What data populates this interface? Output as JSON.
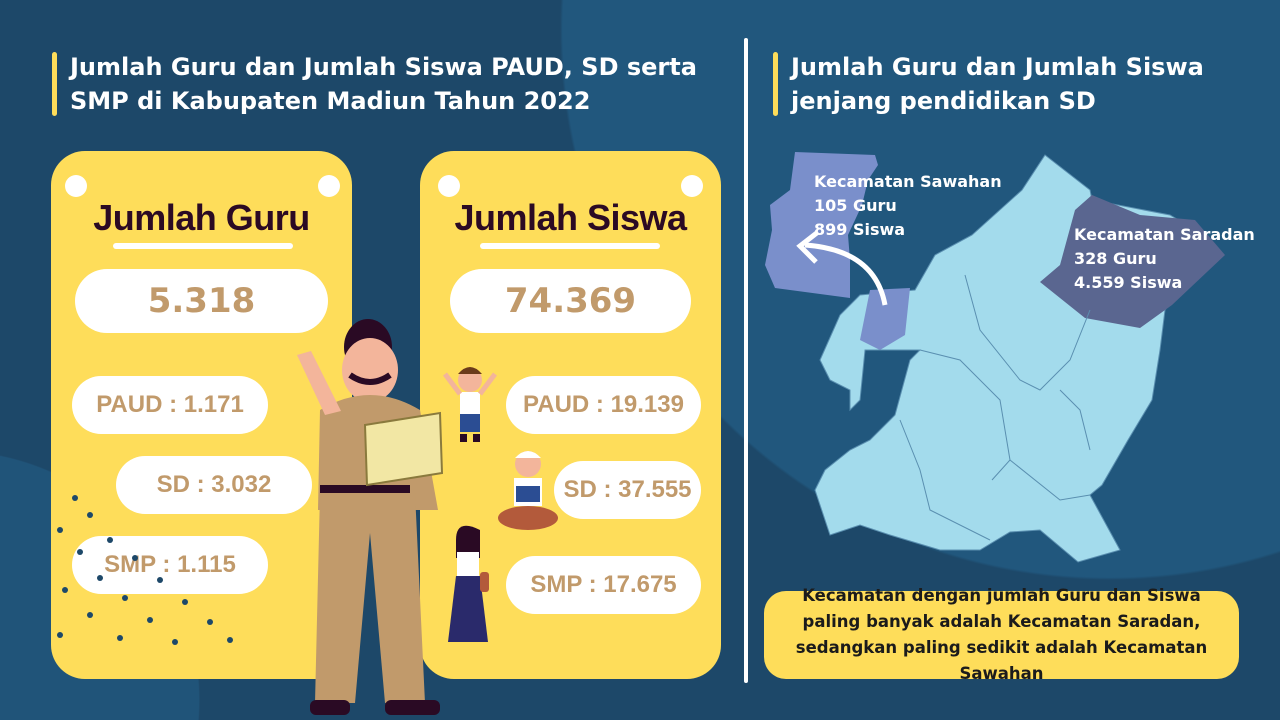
{
  "left_title": {
    "line1": "Jumlah Guru dan Jumlah Siswa PAUD, SD serta",
    "line2": "SMP di Kabupaten Madiun Tahun 2022"
  },
  "right_title": {
    "line1": "Jumlah Guru dan Jumlah Siswa",
    "line2": "jenjang pendidikan SD"
  },
  "guru_card": {
    "heading": "Jumlah Guru",
    "total": "5.318",
    "paud": "PAUD : 1.171",
    "sd": "SD : 3.032",
    "smp": "SMP : 1.115"
  },
  "siswa_card": {
    "heading": "Jumlah Siswa",
    "total": "74.369",
    "paud": "PAUD : 19.139",
    "sd": "SD : 37.555",
    "smp": "SMP : 17.675"
  },
  "map": {
    "sawahan": {
      "name": "Kecamatan Sawahan",
      "guru": "105 Guru",
      "siswa": "899 Siswa",
      "color": "#7a8fcb"
    },
    "saradan": {
      "name": "Kecamatan Saradan",
      "guru": "328 Guru",
      "siswa": "4.559 Siswa",
      "color": "#5a6690"
    },
    "base_color": "#a3dbec"
  },
  "note": "Kecamatan dengan jumlah Guru dan Siswa paling banyak adalah Kecamatan Saradan, sedangkan paling sedikit adalah Kecamatan Sawahan",
  "colors": {
    "background": "#1d4869",
    "accent": "#fedd5a",
    "number": "#c19a6b",
    "heading": "#2b0a24"
  }
}
